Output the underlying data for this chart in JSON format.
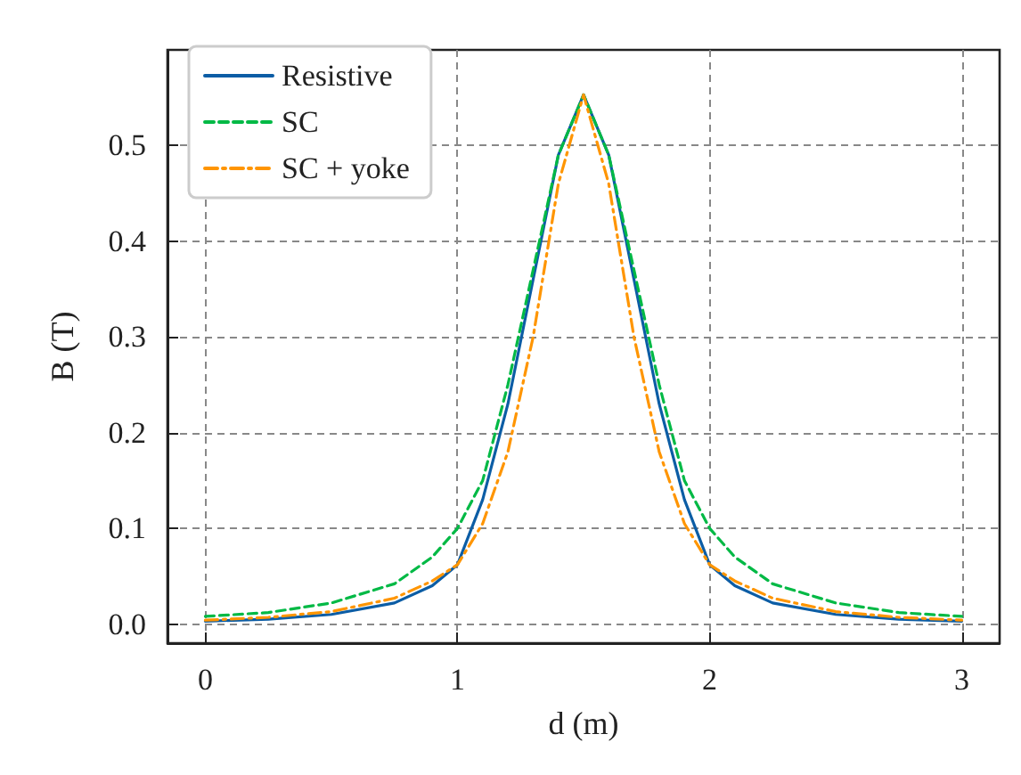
{
  "chart_data": {
    "type": "line",
    "xlabel": "d (m)",
    "ylabel": "B (T)",
    "x": [
      0,
      0.25,
      0.5,
      0.75,
      0.9,
      1,
      1.1,
      1.2,
      1.3,
      1.4,
      1.5,
      1.6,
      1.7,
      1.8,
      1.9,
      2,
      2.1,
      2.25,
      2.5,
      2.75,
      3
    ],
    "series": [
      {
        "name": "Resistive",
        "color": "#0c5da5",
        "line_style": "solid",
        "values": [
          0.003,
          0.005,
          0.01,
          0.022,
          0.04,
          0.062,
          0.13,
          0.23,
          0.36,
          0.49,
          0.553,
          0.49,
          0.36,
          0.23,
          0.13,
          0.062,
          0.04,
          0.022,
          0.01,
          0.005,
          0.003
        ]
      },
      {
        "name": "SC",
        "color": "#00b945",
        "line_style": "dashed",
        "values": [
          0.008,
          0.012,
          0.022,
          0.042,
          0.07,
          0.1,
          0.15,
          0.25,
          0.37,
          0.49,
          0.553,
          0.49,
          0.37,
          0.25,
          0.15,
          0.1,
          0.07,
          0.042,
          0.022,
          0.012,
          0.008
        ]
      },
      {
        "name": "SC + yoke",
        "color": "#ff9500",
        "line_style": "dashdot",
        "values": [
          0.004,
          0.007,
          0.013,
          0.027,
          0.045,
          0.062,
          0.105,
          0.18,
          0.3,
          0.46,
          0.553,
          0.46,
          0.3,
          0.18,
          0.105,
          0.062,
          0.045,
          0.027,
          0.013,
          0.007,
          0.004
        ]
      }
    ],
    "xlim": [
      -0.15,
      3.15
    ],
    "xticks": [
      0,
      1,
      2,
      3
    ],
    "ylim": [
      -0.02,
      0.6
    ],
    "yticks": [
      {
        "value": 0,
        "label": "0.0"
      },
      {
        "value": 0.1,
        "label": "0.1"
      },
      {
        "value": 0.2,
        "label": "0.2"
      },
      {
        "value": 0.3,
        "label": "0.3"
      },
      {
        "value": 0.4,
        "label": "0.4"
      },
      {
        "value": 0.5,
        "label": "0.5"
      }
    ],
    "grid": true,
    "legend": "top left"
  }
}
